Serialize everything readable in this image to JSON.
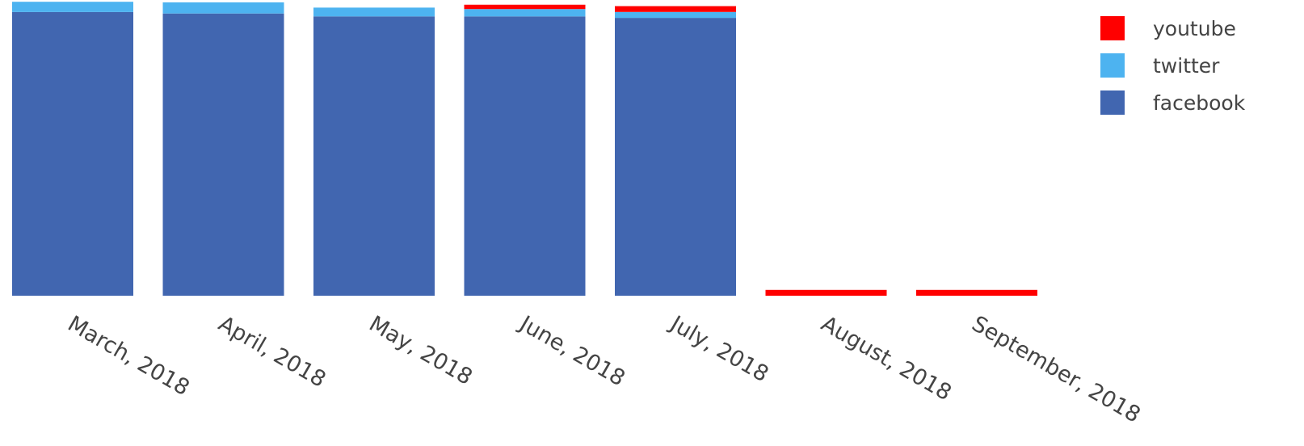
{
  "chart_data": {
    "type": "bar",
    "stacked": true,
    "categories": [
      "March, 2018",
      "April, 2018",
      "May, 2018",
      "June, 2018",
      "July, 2018",
      "August, 2018",
      "September, 2018"
    ],
    "series": [
      {
        "name": "facebook",
        "color": "#4166b0",
        "values": [
          97,
          96.5,
          95.5,
          95.5,
          95,
          0,
          0
        ]
      },
      {
        "name": "twitter",
        "color": "#4db3f0",
        "values": [
          3.5,
          3.8,
          3,
          2.5,
          2,
          0,
          0
        ]
      },
      {
        "name": "youtube",
        "color": "#ff0000",
        "values": [
          0,
          0,
          0,
          1.5,
          2,
          2,
          2
        ]
      }
    ],
    "legend_order": [
      "youtube",
      "twitter",
      "facebook"
    ],
    "ylim": [
      0,
      100
    ],
    "grid": false,
    "legend_position": "top-right",
    "title": "",
    "xlabel": "",
    "ylabel": ""
  }
}
